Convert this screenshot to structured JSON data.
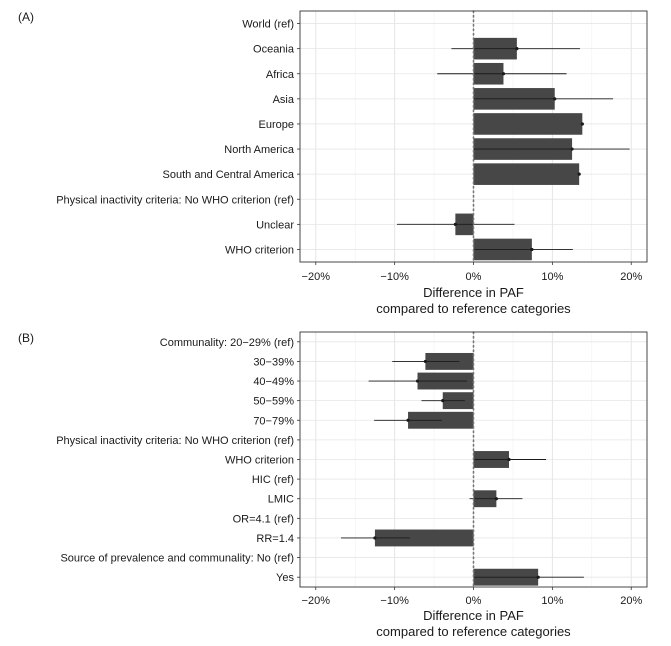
{
  "chart_data": [
    {
      "type": "bar",
      "orientation": "horizontal",
      "panel_label": "(A)",
      "categories": [
        "World (ref)",
        "Oceania",
        "Africa",
        "Asia",
        "Europe",
        "North America",
        "South and Central America",
        "Physical inactivity criteria: No WHO criterion (ref)",
        "Unclear",
        "WHO criterion"
      ],
      "values": [
        null,
        5.5,
        3.8,
        10.3,
        13.8,
        12.5,
        13.4,
        null,
        -2.3,
        7.4
      ],
      "error_low": [
        null,
        -2.8,
        -4.6,
        0.0,
        13.8,
        0.0,
        13.4,
        null,
        -9.7,
        0.0
      ],
      "error_high": [
        null,
        13.5,
        11.8,
        17.7,
        13.8,
        19.8,
        13.4,
        null,
        5.2,
        12.6
      ],
      "xlabel": "Difference in PAF\ncompared to reference categories",
      "xlabel_lines": [
        "Difference in PAF",
        "compared to reference categories"
      ],
      "ylabel": "",
      "xlim": [
        -22,
        22
      ],
      "xticks": [
        -20,
        -10,
        0,
        10,
        20
      ],
      "xtick_labels": [
        "−20%",
        "−10%",
        "0%",
        "10%",
        "20%"
      ],
      "reference_line": 0,
      "grid": true,
      "bar_color": "#474747"
    },
    {
      "type": "bar",
      "orientation": "horizontal",
      "panel_label": "(B)",
      "categories": [
        "Communality: 20−29% (ref)",
        "30−39%",
        "40−49%",
        "50−59%",
        "70−79%",
        "Physical inactivity criteria: No WHO criterion (ref)",
        "WHO criterion",
        "HIC (ref)",
        "LMIC",
        "OR=4.1 (ref)",
        "RR=1.4",
        "Source of prevalence and communality: No (ref)",
        "Yes"
      ],
      "values": [
        null,
        -6.1,
        -7.1,
        -3.9,
        -8.3,
        null,
        4.5,
        null,
        2.9,
        null,
        -12.5,
        null,
        8.2
      ],
      "error_low": [
        null,
        -10.3,
        -13.3,
        -6.6,
        -12.6,
        null,
        0.0,
        null,
        -0.5,
        null,
        -16.8,
        null,
        0.0
      ],
      "error_high": [
        null,
        -1.8,
        -0.8,
        -1.1,
        -4.0,
        null,
        9.2,
        null,
        6.2,
        null,
        -8.1,
        null,
        14.0
      ],
      "xlabel": "Difference in PAF\ncompared to reference categories",
      "xlabel_lines": [
        "Difference in PAF",
        "compared to reference categories"
      ],
      "ylabel": "",
      "xlim": [
        -22,
        22
      ],
      "xticks": [
        -20,
        -10,
        0,
        10,
        20
      ],
      "xtick_labels": [
        "−20%",
        "−10%",
        "0%",
        "10%",
        "20%"
      ],
      "reference_line": 0,
      "grid": true,
      "bar_color": "#474747"
    }
  ]
}
